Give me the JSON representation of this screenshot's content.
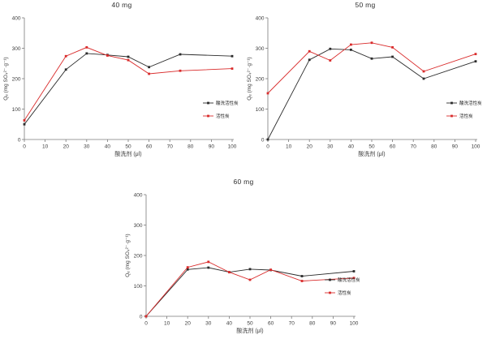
{
  "page": {
    "background": "#ffffff"
  },
  "colors": {
    "acid_washed_series": "#2b2b2b",
    "plain_series": "#d92b2b",
    "axis": "#7a7a7a",
    "tick_text": "#3c3c3c",
    "legend_text": "#222222"
  },
  "chart_data": [
    {
      "type": "line",
      "title": "40 mg",
      "xlabel": "酸洗剂 (μl)",
      "ylabel": "Qₑ (mg SO₄²⁻·g⁻¹)",
      "xlim": [
        0,
        100
      ],
      "ylim": [
        0,
        400
      ],
      "xticks": [
        0,
        10,
        20,
        30,
        40,
        50,
        60,
        70,
        80,
        90,
        100
      ],
      "yticks": [
        0,
        100,
        200,
        300,
        400
      ],
      "grid": false,
      "legend_position": "right-lower",
      "x": [
        0,
        20,
        30,
        40,
        50,
        60,
        75,
        100
      ],
      "series": [
        {
          "name": "酸洗活性炭",
          "color": "#2b2b2b",
          "marker": "square",
          "values": [
            50,
            230,
            283,
            278,
            272,
            238,
            280,
            274
          ]
        },
        {
          "name": "活性炭",
          "color": "#d92b2b",
          "marker": "square",
          "values": [
            63,
            274,
            303,
            276,
            261,
            216,
            226,
            233
          ]
        }
      ]
    },
    {
      "type": "line",
      "title": "50 mg",
      "xlabel": "酸洗剂 (μl)",
      "ylabel": "Qₑ (mg SO₄²⁻·g⁻¹)",
      "xlim": [
        0,
        100
      ],
      "ylim": [
        0,
        400
      ],
      "xticks": [
        0,
        10,
        20,
        30,
        40,
        50,
        60,
        70,
        80,
        90,
        100
      ],
      "yticks": [
        0,
        100,
        200,
        300,
        400
      ],
      "grid": false,
      "legend_position": "right-lower",
      "x": [
        0,
        20,
        30,
        40,
        50,
        60,
        75,
        100
      ],
      "series": [
        {
          "name": "酸洗活性炭",
          "color": "#2b2b2b",
          "marker": "square",
          "values": [
            0,
            262,
            298,
            295,
            266,
            272,
            200,
            257
          ]
        },
        {
          "name": "活性炭",
          "color": "#d92b2b",
          "marker": "square",
          "values": [
            152,
            290,
            260,
            312,
            318,
            303,
            224,
            281
          ]
        }
      ]
    },
    {
      "type": "line",
      "title": "60 mg",
      "xlabel": "酸洗剂 (μl)",
      "ylabel": "Qₑ (mg SO₄²⁻·g⁻¹)",
      "xlim": [
        0,
        100
      ],
      "ylim": [
        0,
        400
      ],
      "xticks": [
        0,
        10,
        20,
        30,
        40,
        50,
        60,
        70,
        80,
        90,
        100
      ],
      "yticks": [
        0,
        100,
        200,
        300,
        400
      ],
      "grid": false,
      "legend_position": "right-lower",
      "x": [
        0,
        20,
        30,
        40,
        50,
        60,
        75,
        100
      ],
      "series": [
        {
          "name": "酸洗活性炭",
          "color": "#2b2b2b",
          "marker": "square",
          "values": [
            0,
            154,
            160,
            145,
            155,
            152,
            132,
            148
          ]
        },
        {
          "name": "活性炭",
          "color": "#d92b2b",
          "marker": "square",
          "values": [
            0,
            161,
            179,
            145,
            120,
            153,
            116,
            126
          ]
        }
      ]
    }
  ]
}
